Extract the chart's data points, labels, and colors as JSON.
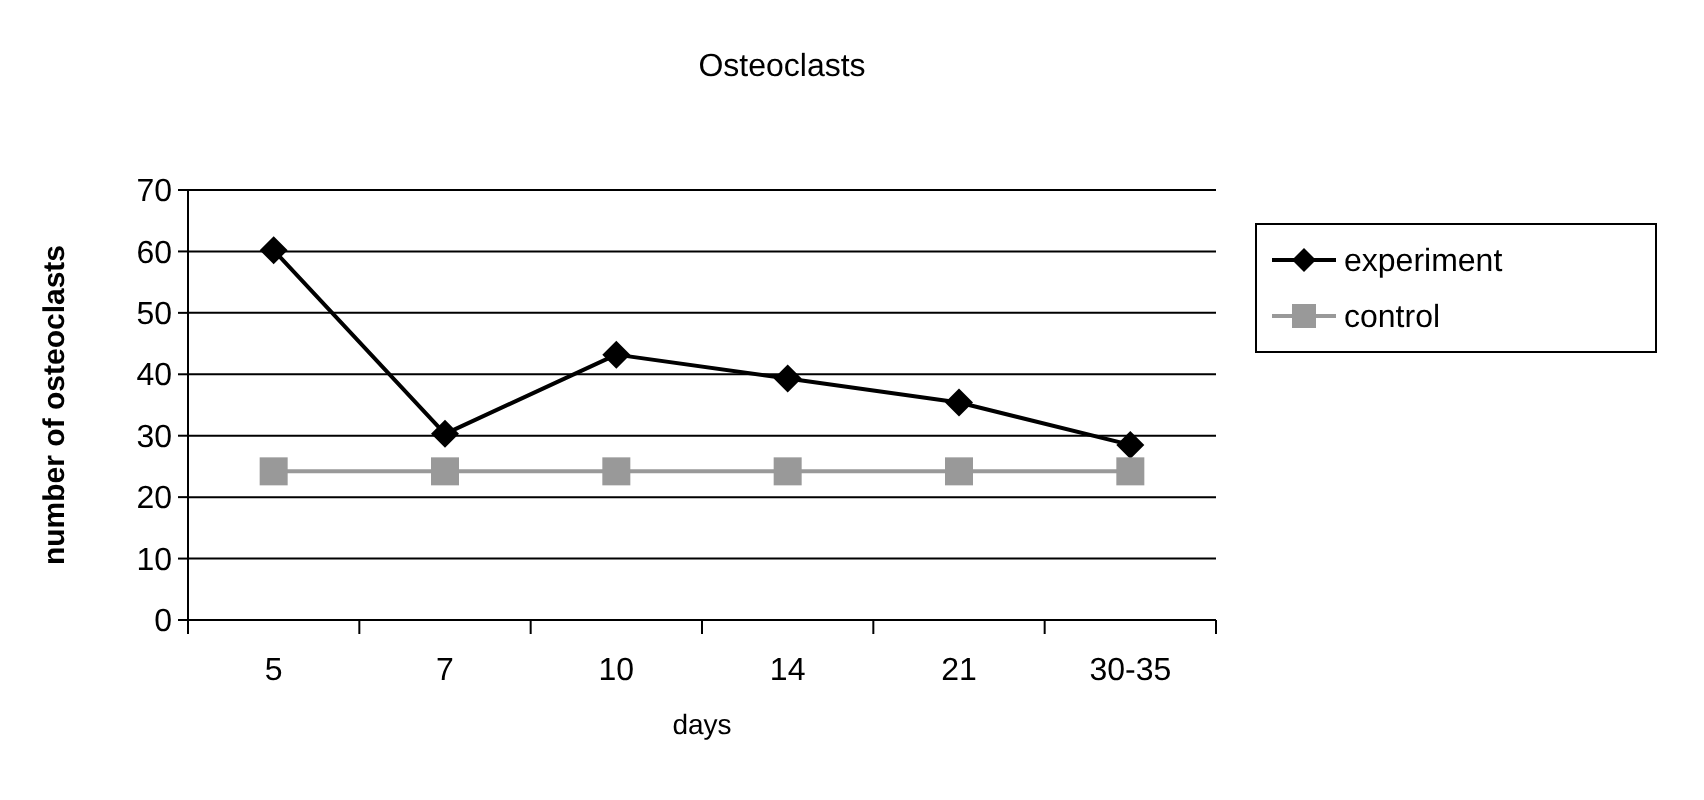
{
  "chart_data": {
    "type": "line",
    "title": "Osteoclasts",
    "xlabel": "days",
    "ylabel": "number of osteoclasts",
    "categories": [
      "5",
      "7",
      "10",
      "14",
      "21",
      "30-35"
    ],
    "series": [
      {
        "name": "experiment",
        "color": "#000000",
        "marker": "diamond",
        "values": [
          60.2,
          30.3,
          43.2,
          39.3,
          35.4,
          28.5
        ]
      },
      {
        "name": "control",
        "color": "#999999",
        "marker": "square",
        "values": [
          24.2,
          24.2,
          24.2,
          24.2,
          24.2,
          24.2
        ]
      }
    ],
    "ylim": [
      0,
      70
    ],
    "yticks": [
      0,
      10,
      20,
      30,
      40,
      50,
      60,
      70
    ],
    "grid": "y",
    "legend": "right"
  }
}
